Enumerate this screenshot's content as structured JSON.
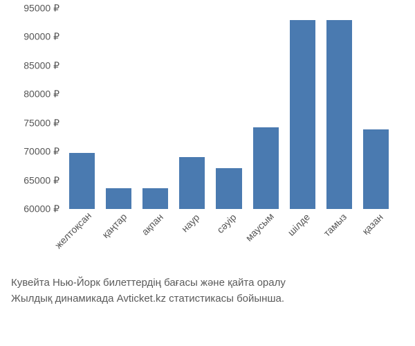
{
  "chart": {
    "type": "bar",
    "categories": [
      "желтоқсан",
      "қаңтар",
      "ақпан",
      "наур",
      "сәуір",
      "маусым",
      "шілде",
      "тамыз",
      "қазан"
    ],
    "values": [
      69800,
      63600,
      63600,
      69000,
      67100,
      74200,
      93000,
      93000,
      73900
    ],
    "bar_color": "#4a7ab0",
    "background_color": "#ffffff",
    "ylim": [
      60000,
      95000
    ],
    "ytick_step": 5000,
    "yticks": [
      60000,
      65000,
      70000,
      75000,
      80000,
      85000,
      90000,
      95000
    ],
    "ytick_labels": [
      "60000 ₽",
      "65000 ₽",
      "70000 ₽",
      "75000 ₽",
      "80000 ₽",
      "85000 ₽",
      "90000 ₽",
      "95000 ₽"
    ],
    "bar_width": 0.7,
    "axis_label_color": "#555555",
    "axis_label_fontsize": 14,
    "x_label_rotation": -45
  },
  "caption": {
    "line1": "Кувейта Нью-Йорк билеттердің бағасы және қайта оралу",
    "line2": "Жылдық динамикада Avticket.kz статистикасы бойынша.",
    "color": "#5a5a5a",
    "fontsize": 15
  }
}
